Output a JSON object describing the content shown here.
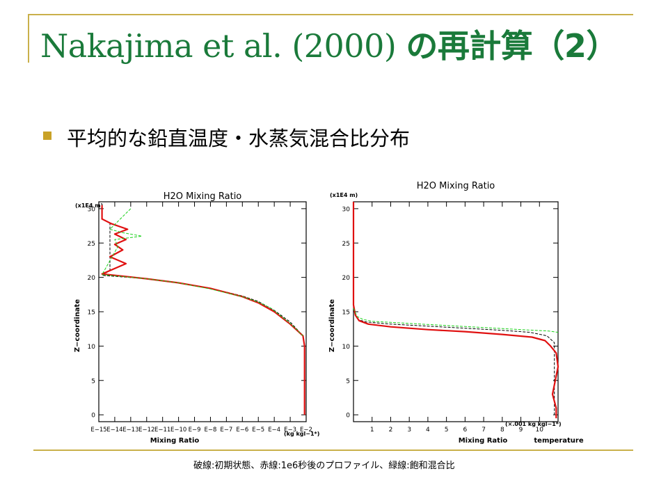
{
  "slide": {
    "title_latin": "Nakajima et al. (2000)",
    "title_jp": "の再計算（2）",
    "bullet_text": "平均的な鉛直温度・水蒸気混合比分布",
    "caption": "破線:初期状態、赤線:1e6秒後のプロファイル、緑線:飽和混合比"
  },
  "colors": {
    "title": "#1a7a3a",
    "accent_line": "#c9b04a",
    "bullet": "#c9a227",
    "red_series": "#e01010",
    "green_series": "#19d019",
    "initial_series": "#000000",
    "axis": "#000000"
  },
  "chart_data": [
    {
      "type": "line",
      "title": "H2O Mixing Ratio",
      "xlabel": "Mixing Ratio",
      "xunit": "(kg kgl−1*)",
      "ylabel": "Z−coordinate",
      "yunit": "(x1E4 m)",
      "x_scale": "log",
      "xlim": [
        -15,
        -2
      ],
      "ylim": [
        -1,
        31
      ],
      "x_ticks": [
        -15,
        -14,
        -13,
        -12,
        -11,
        -10,
        -9,
        -8,
        -7,
        -6,
        -5,
        -4,
        -3,
        -2
      ],
      "x_tick_labels": [
        "E−15",
        "E−14",
        "E−13",
        "E−12",
        "E−11",
        "E−10",
        "E−9",
        "E−8",
        "E−7",
        "E−6",
        "E−5",
        "E−4",
        "E−3",
        "E−2"
      ],
      "y_ticks": [
        0,
        5,
        10,
        15,
        20,
        25,
        30
      ],
      "series": [
        {
          "role": "initial state (dashed)",
          "style": "dashed",
          "color": "#000000",
          "x": [
            -14.3,
            -14.3,
            -14.3,
            -14.8,
            -12,
            -10,
            -8,
            -6,
            -5,
            -4,
            -3,
            -2.2,
            -2.1,
            -2.1
          ],
          "y": [
            28,
            25,
            21,
            20.3,
            19.8,
            19.2,
            18.4,
            17.3,
            16.5,
            15.2,
            13.5,
            11.5,
            10,
            0
          ]
        },
        {
          "role": "after 1e6 s",
          "style": "solid",
          "color": "#e01010",
          "x": [
            -14.8,
            -14.8,
            -14.2,
            -13.2,
            -14,
            -13.3,
            -14,
            -13.5,
            -14.3,
            -13.3,
            -14.8,
            -12,
            -10,
            -8,
            -6,
            -5,
            -4,
            -3,
            -2.2,
            -2.1,
            -2.1
          ],
          "y": [
            30.5,
            28.5,
            27.8,
            27,
            26.3,
            25.5,
            24.8,
            24,
            23,
            22,
            20.5,
            19.8,
            19.2,
            18.4,
            17.2,
            16.3,
            15,
            13.2,
            11.5,
            10,
            0
          ]
        },
        {
          "role": "saturation mixing ratio",
          "style": "dashed",
          "color": "#19d019",
          "x": [
            -13,
            -14.3,
            -13.5,
            -12.3,
            -14,
            -13.8,
            -14.8,
            -12,
            -10,
            -8,
            -6,
            -5,
            -4.2,
            -3,
            -2.2
          ],
          "y": [
            30,
            27,
            26.5,
            26,
            25.5,
            24.5,
            20.4,
            19.8,
            19.2,
            18.3,
            17.2,
            16.4,
            15.5,
            13.3,
            11.5
          ]
        }
      ]
    },
    {
      "type": "line",
      "title": "H2O Mixing Ratio",
      "xlabel": "Mixing Ratio",
      "xlabel2": "temperature",
      "xunit": "(×.001 kg kgl−1*)",
      "ylabel": "Z−coordinate",
      "yunit": "(x1E4 m)",
      "xlim": [
        0,
        11
      ],
      "ylim": [
        -1,
        31
      ],
      "x_ticks": [
        1,
        2,
        3,
        4,
        5,
        6,
        7,
        8,
        9,
        10
      ],
      "y_ticks": [
        0,
        5,
        10,
        15,
        20,
        25,
        30
      ],
      "series": [
        {
          "role": "initial state (dashed)",
          "style": "dashed",
          "color": "#000000",
          "x": [
            0,
            0,
            0.1,
            0.3,
            0.7,
            2,
            4,
            6,
            8,
            9.5,
            10.4,
            10.8,
            10.8
          ],
          "y": [
            31,
            16,
            14.5,
            13.8,
            13.5,
            13.2,
            12.9,
            12.6,
            12.3,
            12,
            11.5,
            10.5,
            0
          ]
        },
        {
          "role": "after 1e6 s",
          "style": "solid",
          "color": "#e01010",
          "x": [
            0,
            0,
            0.1,
            0.3,
            0.8,
            2,
            4,
            6,
            8,
            9.6,
            10.3,
            10.6,
            10.9,
            11,
            10.7,
            10.9,
            10.9
          ],
          "y": [
            31,
            16,
            14.5,
            13.7,
            13.2,
            12.8,
            12.4,
            12.1,
            11.7,
            11.3,
            10.8,
            10,
            9,
            7,
            3,
            1,
            -0.5
          ]
        },
        {
          "role": "saturation mixing ratio",
          "style": "dashed",
          "color": "#19d019",
          "x": [
            0,
            0.2,
            0.5,
            1,
            3,
            5,
            7,
            9,
            10.5,
            11
          ],
          "y": [
            15.5,
            14.3,
            13.9,
            13.6,
            13.3,
            13.0,
            12.7,
            12.4,
            12.2,
            12
          ]
        }
      ]
    }
  ]
}
